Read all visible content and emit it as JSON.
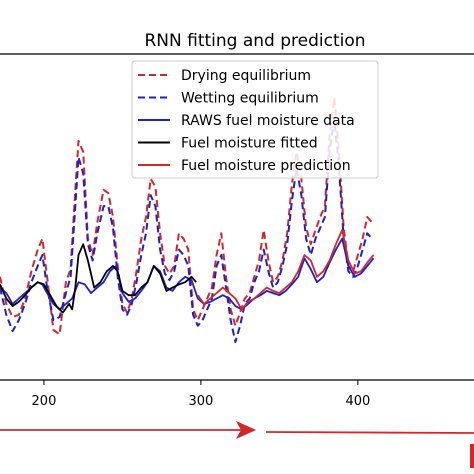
{
  "chart_data": {
    "type": "line",
    "title": "RNN fitting and prediction",
    "xlabel": "",
    "ylabel": "",
    "xlim": [
      172,
      474
    ],
    "ylim": [
      0,
      30
    ],
    "x_ticks": [
      200,
      300,
      400
    ],
    "x_tick_labels": [
      "200",
      "300",
      "400"
    ],
    "legend_position": "top-center",
    "series": [
      {
        "name": "Drying equilibrium",
        "style": "dashed",
        "color": "#d62728",
        "x": [
          172,
          176,
          180,
          184,
          188,
          192,
          196,
          199,
          202,
          206,
          210,
          214,
          217,
          220,
          222,
          225,
          228,
          231,
          234,
          238,
          241,
          244,
          247,
          250,
          253,
          256,
          259,
          262,
          265,
          268,
          271,
          274,
          277,
          280,
          283,
          286,
          289,
          292,
          295,
          298,
          301,
          304,
          307,
          310,
          313,
          316,
          319,
          322,
          325,
          328,
          331,
          334,
          337,
          340,
          343,
          346,
          349,
          352,
          355,
          358,
          361,
          364,
          367,
          370,
          373,
          376,
          379,
          382,
          385,
          388,
          391,
          394,
          397,
          400,
          403,
          406,
          409
        ],
        "y": [
          9.5,
          7.0,
          5.8,
          6.0,
          7.5,
          10.0,
          12.0,
          13.0,
          9.5,
          4.6,
          4.2,
          9.0,
          10.2,
          17.5,
          22.0,
          21.0,
          13.0,
          11.5,
          14.5,
          17.5,
          17.2,
          15.0,
          10.5,
          7.0,
          6.2,
          7.5,
          10.0,
          13.0,
          15.0,
          18.5,
          17.8,
          13.5,
          10.5,
          9.8,
          10.5,
          13.5,
          13.0,
          12.0,
          6.5,
          5.5,
          6.5,
          7.5,
          8.5,
          11.5,
          13.5,
          9.5,
          6.5,
          5.0,
          6.2,
          7.5,
          8.0,
          9.5,
          11.0,
          13.8,
          11.0,
          9.0,
          9.5,
          11.0,
          13.5,
          18.0,
          21.0,
          18.5,
          14.0,
          12.5,
          13.8,
          15.0,
          16.0,
          22.5,
          26.0,
          21.0,
          14.0,
          10.5,
          10.0,
          11.5,
          13.0,
          15.0,
          14.5
        ]
      },
      {
        "name": "Wetting equilibrium",
        "style": "dashed",
        "color": "#1f1fcf",
        "x": [
          172,
          176,
          180,
          184,
          188,
          192,
          196,
          199,
          202,
          206,
          210,
          214,
          217,
          220,
          222,
          225,
          228,
          231,
          234,
          238,
          241,
          244,
          247,
          250,
          253,
          256,
          259,
          262,
          265,
          268,
          271,
          274,
          277,
          280,
          283,
          286,
          289,
          292,
          295,
          298,
          301,
          304,
          307,
          310,
          313,
          316,
          319,
          322,
          325,
          328,
          331,
          334,
          337,
          340,
          343,
          346,
          349,
          352,
          355,
          358,
          361,
          364,
          367,
          370,
          373,
          376,
          379,
          382,
          385,
          388,
          391,
          394,
          397,
          400,
          403,
          406,
          409
        ],
        "y": [
          8.5,
          6.0,
          4.5,
          5.5,
          7.0,
          9.0,
          10.5,
          11.5,
          8.5,
          5.5,
          5.8,
          8.0,
          9.5,
          16.0,
          20.5,
          19.0,
          12.5,
          11.0,
          13.5,
          16.0,
          16.0,
          14.0,
          9.5,
          6.5,
          6.0,
          7.0,
          9.0,
          11.5,
          13.5,
          17.0,
          16.0,
          12.0,
          9.8,
          9.2,
          10.0,
          12.0,
          11.5,
          10.5,
          6.0,
          5.0,
          5.5,
          6.5,
          7.5,
          10.5,
          11.5,
          8.5,
          5.5,
          3.5,
          5.0,
          7.0,
          7.5,
          9.0,
          10.0,
          12.0,
          10.0,
          8.5,
          9.0,
          10.5,
          12.5,
          16.5,
          19.5,
          17.0,
          13.0,
          11.5,
          13.0,
          14.0,
          15.0,
          21.0,
          24.0,
          19.5,
          13.0,
          10.0,
          9.5,
          10.5,
          12.0,
          13.5,
          13.0
        ]
      },
      {
        "name": "RAWS fuel moisture data",
        "style": "solid",
        "color": "#1f1fcf",
        "x": [
          172,
          176,
          180,
          184,
          188,
          192,
          196,
          199,
          202,
          206,
          210,
          214,
          218,
          222,
          226,
          230,
          234,
          238,
          242,
          246,
          250,
          254,
          258,
          262,
          266,
          270,
          274,
          278,
          282,
          286,
          290,
          294,
          298,
          302,
          306,
          310,
          314,
          318,
          322,
          326,
          330,
          334,
          338,
          342,
          346,
          350,
          354,
          358,
          362,
          366,
          370,
          374,
          378,
          382,
          386,
          390,
          394,
          398,
          402,
          406,
          410
        ],
        "y": [
          8.5,
          8.0,
          7.0,
          7.5,
          8.0,
          8.5,
          9.0,
          8.8,
          8.0,
          7.0,
          6.5,
          7.0,
          7.5,
          9.0,
          8.8,
          8.0,
          8.5,
          9.0,
          10.0,
          10.5,
          8.0,
          7.2,
          7.5,
          8.2,
          9.0,
          10.5,
          10.0,
          8.5,
          8.2,
          9.0,
          9.5,
          9.2,
          7.5,
          7.0,
          7.2,
          7.5,
          7.8,
          7.5,
          6.8,
          6.5,
          7.0,
          7.5,
          7.8,
          8.2,
          8.0,
          7.8,
          8.2,
          8.8,
          9.5,
          11.2,
          10.2,
          9.0,
          9.5,
          10.8,
          12.0,
          13.0,
          10.5,
          9.5,
          9.8,
          10.5,
          11.2
        ]
      },
      {
        "name": "Fuel moisture fitted",
        "style": "solid",
        "color": "#000000",
        "x": [
          172,
          176,
          180,
          184,
          188,
          192,
          196,
          200,
          204,
          208,
          212,
          216,
          218,
          220,
          222,
          225,
          228,
          232,
          236,
          240,
          244,
          247,
          250,
          254,
          258,
          262,
          266,
          270,
          274,
          278,
          282,
          286,
          290,
          294,
          297
        ],
        "y": [
          8.8,
          7.5,
          6.8,
          7.2,
          7.8,
          8.5,
          9.0,
          8.8,
          7.8,
          6.8,
          6.2,
          7.0,
          6.5,
          8.5,
          11.5,
          12.5,
          11.0,
          8.5,
          9.0,
          10.0,
          10.5,
          10.0,
          8.2,
          7.8,
          7.8,
          8.5,
          9.0,
          10.5,
          9.8,
          8.2,
          8.5,
          8.8,
          9.0,
          9.5,
          9.0
        ]
      },
      {
        "name": "Fuel moisture prediction",
        "style": "solid",
        "color": "#d62728",
        "x": [
          298,
          302,
          306,
          310,
          314,
          318,
          322,
          326,
          330,
          334,
          338,
          342,
          346,
          350,
          354,
          358,
          362,
          366,
          370,
          374,
          378,
          382,
          386,
          390,
          394,
          398,
          402,
          406,
          410
        ],
        "y": [
          7.8,
          7.0,
          7.5,
          8.0,
          8.5,
          8.0,
          7.5,
          6.5,
          7.2,
          7.5,
          8.0,
          8.5,
          8.2,
          8.0,
          8.5,
          9.0,
          10.0,
          11.5,
          11.0,
          9.5,
          10.0,
          11.0,
          12.5,
          13.8,
          11.0,
          9.8,
          10.0,
          10.8,
          11.5
        ]
      }
    ]
  },
  "arrows": {
    "fitting_color": "#d62728",
    "prediction_color": "#d62728"
  }
}
